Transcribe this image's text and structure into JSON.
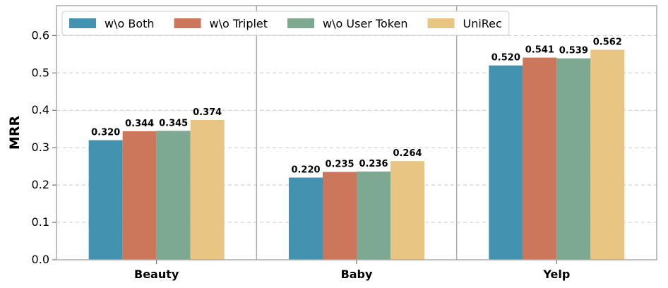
{
  "chart_data": {
    "type": "bar",
    "title": "",
    "xlabel": "",
    "ylabel": "MRR",
    "ylim": [
      0,
      0.68
    ],
    "yticks": [
      "0.0",
      "0.1",
      "0.2",
      "0.3",
      "0.4",
      "0.5",
      "0.6"
    ],
    "ytick_values": [
      0.0,
      0.1,
      0.2,
      0.3,
      0.4,
      0.5,
      0.6
    ],
    "grid": "y-dashed",
    "legend_position": "top-left",
    "categories": [
      "Beauty",
      "Baby",
      "Yelp"
    ],
    "series": [
      {
        "name": "w\\o Both",
        "color": "#4392b0",
        "values": [
          0.32,
          0.22,
          0.52
        ],
        "labels": [
          "0.320",
          "0.220",
          "0.520"
        ]
      },
      {
        "name": "w\\o Triplet",
        "color": "#cc765c",
        "values": [
          0.344,
          0.235,
          0.541
        ],
        "labels": [
          "0.344",
          "0.235",
          "0.541"
        ]
      },
      {
        "name": "w\\o User Token",
        "color": "#7da892",
        "values": [
          0.345,
          0.236,
          0.539
        ],
        "labels": [
          "0.345",
          "0.236",
          "0.539"
        ]
      },
      {
        "name": "UniRec",
        "color": "#e9c584",
        "values": [
          0.374,
          0.264,
          0.562
        ],
        "labels": [
          "0.374",
          "0.264",
          "0.562"
        ]
      }
    ]
  }
}
